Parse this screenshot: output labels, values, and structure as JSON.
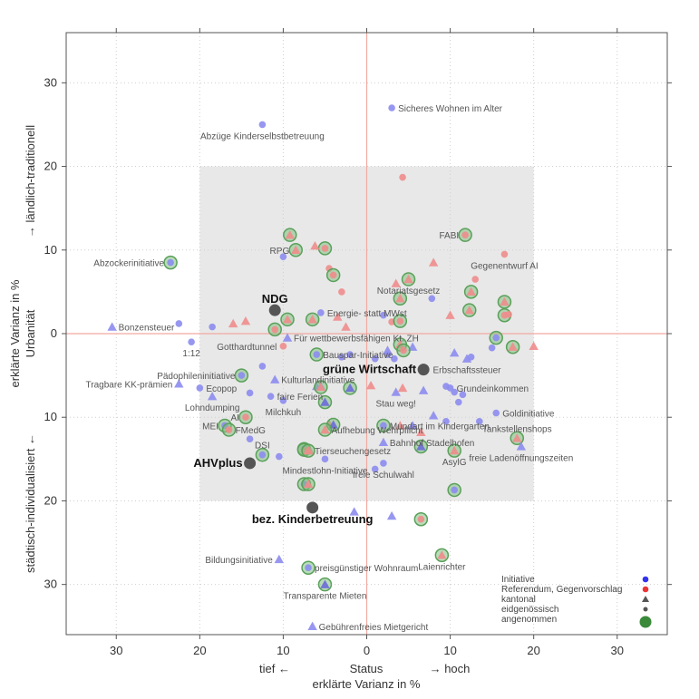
{
  "chart_data": {
    "type": "scatter",
    "xlim": [
      36,
      -36
    ],
    "ylim": [
      36,
      -36
    ],
    "x_ticks": [
      30,
      20,
      10,
      0,
      10,
      20,
      30
    ],
    "y_ticks": [
      30,
      20,
      10,
      0,
      10,
      20,
      30
    ],
    "x_tick_values": [
      30,
      20,
      10,
      0,
      -10,
      -20,
      -30
    ],
    "y_tick_values": [
      30,
      20,
      10,
      0,
      -10,
      -20,
      -30
    ],
    "grid": true,
    "highlight_region": {
      "x": [
        20,
        -20
      ],
      "y": [
        20,
        -20
      ]
    },
    "xlabel_left": "tief ←",
    "xlabel_mid": "Status",
    "xlabel_right": "→ hoch",
    "xlabel": "erklärte Varianz in %",
    "ylabel_left": "erklärte Varianz in %",
    "ylabel_upper": "→ ländlich-traditionell",
    "ylabel_mid": "Urbanität",
    "ylabel_lower": "städtisch-individualisiert ←",
    "colors": {
      "initiative": "#8c8cf0",
      "referendum": "#f08c8c",
      "kantonal_fill": "#6b6bd8",
      "accepted_ring": "#5aa05a",
      "bold_point": "#555555"
    },
    "legend": {
      "position": "bottom-right",
      "items": [
        "Initiative",
        "Referendum, Gegenvorschlag",
        "kantonal",
        "eidgenössisch",
        "angenommen"
      ],
      "colors": [
        "#3333ee",
        "#ee3333",
        "#555555",
        "#555555",
        "#3a8a3a"
      ]
    },
    "labeled_points": [
      {
        "label": "Sicheres Wohnen im Alter",
        "x": -3,
        "y": 27,
        "type": "initiative",
        "shape": "circle",
        "anchor": "right"
      },
      {
        "label": "Abzüge Kinderselbstbetreuung",
        "x": 12.5,
        "y": 25,
        "type": "initiative",
        "shape": "circle",
        "anchor": "below"
      },
      {
        "label": "FABI",
        "x": -11.8,
        "y": 11.8,
        "type": "referendum",
        "shape": "circle",
        "accepted": true,
        "anchor": "left"
      },
      {
        "label": "RPG",
        "x": 8.5,
        "y": 10,
        "type": "referendum",
        "shape": "triangle",
        "accepted": true,
        "anchor": "left"
      },
      {
        "label": "Gegenentwurf AI",
        "x": -16.5,
        "y": 9.5,
        "type": "referendum",
        "shape": "circle",
        "anchor": "below"
      },
      {
        "label": "Abzockerinitiative",
        "x": 23.5,
        "y": 8.5,
        "type": "initiative",
        "shape": "circle",
        "accepted": true,
        "anchor": "left"
      },
      {
        "label": "Notariatsgesetz",
        "x": -5,
        "y": 6.5,
        "type": "referendum",
        "shape": "triangle",
        "accepted": true,
        "anchor": "below"
      },
      {
        "label": "Energie- statt MWst",
        "x": 5.5,
        "y": 2.5,
        "type": "initiative",
        "shape": "circle",
        "anchor": "right"
      },
      {
        "label": "Bonzensteuer",
        "x": 30.5,
        "y": 0.8,
        "type": "initiative",
        "shape": "triangle",
        "anchor": "right"
      },
      {
        "label": "1:12",
        "x": 21,
        "y": -1,
        "type": "initiative",
        "shape": "circle",
        "anchor": "below"
      },
      {
        "label": "Gotthardtunnel",
        "x": 10,
        "y": -1.5,
        "type": "referendum",
        "shape": "circle",
        "anchor": "left"
      },
      {
        "label": "Für wettbewerbsfähigen Kt. ZH",
        "x": 9.5,
        "y": -0.5,
        "type": "initiative",
        "shape": "triangle",
        "anchor": "right"
      },
      {
        "label": "Bauspar-Initiative",
        "x": 6,
        "y": -2.5,
        "type": "initiative",
        "shape": "circle",
        "accepted": true,
        "anchor": "right"
      },
      {
        "label": "Erbschaftssteuer",
        "x": -12,
        "y": -3,
        "type": "initiative",
        "shape": "triangle",
        "anchor": "below"
      },
      {
        "label": "Pädophileninitiative",
        "x": 15,
        "y": -5,
        "type": "initiative",
        "shape": "circle",
        "accepted": true,
        "anchor": "left"
      },
      {
        "label": "Kulturlandinitiative",
        "x": 11,
        "y": -5.5,
        "type": "initiative",
        "shape": "triangle",
        "anchor": "right"
      },
      {
        "label": "Tragbare KK-prämien",
        "x": 22.5,
        "y": -6,
        "type": "initiative",
        "shape": "triangle",
        "anchor": "left"
      },
      {
        "label": "Ecopop",
        "x": 20,
        "y": -6.5,
        "type": "initiative",
        "shape": "circle",
        "anchor": "right"
      },
      {
        "label": "faire Ferien",
        "x": 11.5,
        "y": -7.5,
        "type": "initiative",
        "shape": "circle",
        "anchor": "right"
      },
      {
        "label": "Grundeinkommen",
        "x": -10,
        "y": -6.5,
        "type": "initiative",
        "shape": "circle",
        "anchor": "right"
      },
      {
        "label": "Lohndumping",
        "x": 18.5,
        "y": -7.5,
        "type": "initiative",
        "shape": "triangle",
        "anchor": "below"
      },
      {
        "label": "Milchkuh",
        "x": 10,
        "y": -8,
        "type": "initiative",
        "shape": "circle",
        "anchor": "below"
      },
      {
        "label": "Goldinitiative",
        "x": -15.5,
        "y": -9.5,
        "type": "initiative",
        "shape": "circle",
        "anchor": "right"
      },
      {
        "label": "Stau weg!",
        "x": -3.5,
        "y": -7,
        "type": "initiative",
        "shape": "triangle",
        "anchor": "below"
      },
      {
        "label": "AI",
        "x": 14.5,
        "y": -10,
        "type": "referendum",
        "shape": "circle",
        "accepted": true,
        "anchor": "left"
      },
      {
        "label": "MEI",
        "x": 17,
        "y": -11,
        "type": "initiative",
        "shape": "circle",
        "accepted": true,
        "anchor": "left"
      },
      {
        "label": "FMedG",
        "x": 16.5,
        "y": -11.5,
        "type": "referendum",
        "shape": "circle",
        "accepted": true,
        "anchor": "right"
      },
      {
        "label": "Aufhebung Wehrpflicht",
        "x": 5,
        "y": -11.5,
        "type": "referendum",
        "shape": "triangle",
        "accepted": true,
        "anchor": "right"
      },
      {
        "label": "Mundart im Kindergarten",
        "x": -2,
        "y": -11,
        "type": "initiative",
        "shape": "circle",
        "accepted": true,
        "anchor": "right"
      },
      {
        "label": "Tankstellenshops",
        "x": -18,
        "y": -12.5,
        "type": "referendum",
        "shape": "triangle",
        "accepted": true,
        "anchor": "above"
      },
      {
        "label": "Bahnhof Stadelhofen",
        "x": -2,
        "y": -13,
        "type": "initiative",
        "shape": "triangle",
        "anchor": "right"
      },
      {
        "label": "DSI",
        "x": 12.5,
        "y": -14.5,
        "type": "initiative",
        "shape": "circle",
        "accepted": true,
        "anchor": "above"
      },
      {
        "label": "Tierseuchengesetz",
        "x": 7,
        "y": -14,
        "type": "referendum",
        "shape": "triangle",
        "accepted": true,
        "anchor": "right"
      },
      {
        "label": "freie Ladenöffnungszeiten",
        "x": -18.5,
        "y": -13.5,
        "type": "initiative",
        "shape": "triangle",
        "anchor": "below"
      },
      {
        "label": "AsylG",
        "x": -10.5,
        "y": -14,
        "type": "referendum",
        "shape": "triangle",
        "accepted": true,
        "anchor": "below"
      },
      {
        "label": "Mindestlohn-Initiative",
        "x": 5,
        "y": -15,
        "type": "initiative",
        "shape": "circle",
        "anchor": "below"
      },
      {
        "label": "freie Schulwahl",
        "x": -2,
        "y": -15.5,
        "type": "initiative",
        "shape": "circle",
        "anchor": "below"
      },
      {
        "label": "Bildungsinitiative",
        "x": 10.5,
        "y": -27,
        "type": "initiative",
        "shape": "triangle",
        "anchor": "left"
      },
      {
        "label": "preisgünstiger Wohnraum",
        "x": 7,
        "y": -28,
        "type": "initiative",
        "shape": "circle",
        "accepted": true,
        "anchor": "right"
      },
      {
        "label": "Laienrichter",
        "x": -9,
        "y": -26.5,
        "type": "referendum",
        "shape": "triangle",
        "accepted": true,
        "anchor": "below"
      },
      {
        "label": "Transparente Mieten",
        "x": 5,
        "y": -30,
        "type": "initiative",
        "shape": "triangle",
        "accepted": true,
        "anchor": "below"
      },
      {
        "label": "Gebührenfreies Mietgericht",
        "x": 6.5,
        "y": -35,
        "type": "initiative",
        "shape": "triangle",
        "anchor": "right"
      }
    ],
    "highlighted_points": [
      {
        "label": "NDG",
        "x": 11,
        "y": 2.8,
        "anchor": "above"
      },
      {
        "label": "grüne Wirtschaft",
        "x": -6.8,
        "y": -4.3,
        "anchor": "left"
      },
      {
        "label": "AHVplus",
        "x": 14,
        "y": -15.5,
        "anchor": "left"
      },
      {
        "label": "bez. Kinderbetreuung",
        "x": 6.5,
        "y": -20.8,
        "anchor": "below"
      }
    ],
    "other_points": [
      {
        "x": -4.3,
        "y": 18.7,
        "type": "referendum",
        "shape": "circle"
      },
      {
        "x": 9.2,
        "y": 11.8,
        "type": "referendum",
        "shape": "triangle",
        "accepted": true
      },
      {
        "x": 5,
        "y": 10.2,
        "type": "referendum",
        "shape": "circle",
        "accepted": true
      },
      {
        "x": 6.2,
        "y": 10.5,
        "type": "referendum",
        "shape": "triangle"
      },
      {
        "x": 10,
        "y": 9.2,
        "type": "initiative",
        "shape": "circle"
      },
      {
        "x": 4.5,
        "y": 7.8,
        "type": "referendum",
        "shape": "circle"
      },
      {
        "x": 4,
        "y": 7,
        "type": "referendum",
        "shape": "circle",
        "accepted": true
      },
      {
        "x": -8,
        "y": 8.5,
        "type": "referendum",
        "shape": "triangle"
      },
      {
        "x": -13,
        "y": 6.5,
        "type": "referendum",
        "shape": "circle"
      },
      {
        "x": -3.5,
        "y": 6,
        "type": "referendum",
        "shape": "triangle"
      },
      {
        "x": -12.5,
        "y": 5,
        "type": "referendum",
        "shape": "triangle",
        "accepted": true
      },
      {
        "x": -7.8,
        "y": 4.2,
        "type": "initiative",
        "shape": "circle"
      },
      {
        "x": -4,
        "y": 4.2,
        "type": "referendum",
        "shape": "triangle",
        "accepted": true
      },
      {
        "x": -16.5,
        "y": 3.8,
        "type": "referendum",
        "shape": "triangle",
        "accepted": true
      },
      {
        "x": 3,
        "y": 5,
        "type": "referendum",
        "shape": "circle"
      },
      {
        "x": -12.3,
        "y": 2.8,
        "type": "referendum",
        "shape": "triangle",
        "accepted": true
      },
      {
        "x": -16.5,
        "y": 2.2,
        "type": "referendum",
        "shape": "circle",
        "accepted": true
      },
      {
        "x": -17,
        "y": 2.3,
        "type": "referendum",
        "shape": "circle"
      },
      {
        "x": 9.5,
        "y": 1.7,
        "type": "referendum",
        "shape": "triangle",
        "accepted": true
      },
      {
        "x": 6.5,
        "y": 1.7,
        "type": "referendum",
        "shape": "triangle",
        "accepted": true
      },
      {
        "x": 3.5,
        "y": 2,
        "type": "referendum",
        "shape": "triangle"
      },
      {
        "x": -2,
        "y": 2.2,
        "type": "initiative",
        "shape": "circle"
      },
      {
        "x": -3,
        "y": 1.4,
        "type": "referendum",
        "shape": "circle"
      },
      {
        "x": -4,
        "y": 1.5,
        "type": "referendum",
        "shape": "circle",
        "accepted": true
      },
      {
        "x": -10,
        "y": 2.2,
        "type": "referendum",
        "shape": "triangle"
      },
      {
        "x": 2.5,
        "y": 0.8,
        "type": "referendum",
        "shape": "triangle"
      },
      {
        "x": 11,
        "y": 0.5,
        "type": "referendum",
        "shape": "circle",
        "accepted": true
      },
      {
        "x": 14.5,
        "y": 1.5,
        "type": "referendum",
        "shape": "triangle"
      },
      {
        "x": 16,
        "y": 1.2,
        "type": "referendum",
        "shape": "triangle"
      },
      {
        "x": 18.5,
        "y": 0.8,
        "type": "initiative",
        "shape": "circle"
      },
      {
        "x": 22.5,
        "y": 1.2,
        "type": "initiative",
        "shape": "circle"
      },
      {
        "x": -15.5,
        "y": -0.5,
        "type": "initiative",
        "shape": "circle",
        "accepted": true
      },
      {
        "x": -20,
        "y": -1.5,
        "type": "referendum",
        "shape": "triangle"
      },
      {
        "x": -17.5,
        "y": -1.6,
        "type": "referendum",
        "shape": "triangle",
        "accepted": true
      },
      {
        "x": -15,
        "y": -1.7,
        "type": "initiative",
        "shape": "circle"
      },
      {
        "x": -4,
        "y": -1.3,
        "type": "referendum",
        "shape": "triangle",
        "accepted": true
      },
      {
        "x": -2.5,
        "y": -2,
        "type": "initiative",
        "shape": "triangle"
      },
      {
        "x": -5.5,
        "y": -1.6,
        "type": "initiative",
        "shape": "triangle"
      },
      {
        "x": -10.5,
        "y": -2.3,
        "type": "initiative",
        "shape": "triangle"
      },
      {
        "x": -12.5,
        "y": -2.8,
        "type": "initiative",
        "shape": "circle"
      },
      {
        "x": -4.4,
        "y": -2,
        "type": "referendum",
        "shape": "circle",
        "accepted": true
      },
      {
        "x": 2,
        "y": -2.5,
        "type": "initiative",
        "shape": "circle"
      },
      {
        "x": -1,
        "y": -3,
        "type": "initiative",
        "shape": "circle"
      },
      {
        "x": -2.5,
        "y": -2.5,
        "type": "initiative",
        "shape": "circle"
      },
      {
        "x": -3.3,
        "y": -3,
        "type": "initiative",
        "shape": "circle"
      },
      {
        "x": 3,
        "y": -2.8,
        "type": "initiative",
        "shape": "circle"
      },
      {
        "x": 12.5,
        "y": -3.9,
        "type": "initiative",
        "shape": "circle"
      },
      {
        "x": 2,
        "y": -6.5,
        "type": "initiative",
        "shape": "triangle",
        "accepted": true
      },
      {
        "x": 6,
        "y": -6.3,
        "type": "initiative",
        "shape": "triangle"
      },
      {
        "x": 5.5,
        "y": -6.3,
        "type": "initiative",
        "shape": "triangle"
      },
      {
        "x": 5,
        "y": -8.2,
        "type": "initiative",
        "shape": "triangle",
        "accepted": true
      },
      {
        "x": 5.5,
        "y": -6.4,
        "type": "referendum",
        "shape": "triangle",
        "accepted": true
      },
      {
        "x": -0.5,
        "y": -6.2,
        "type": "referendum",
        "shape": "triangle"
      },
      {
        "x": -4.3,
        "y": -6.5,
        "type": "referendum",
        "shape": "triangle"
      },
      {
        "x": -6.8,
        "y": -6.8,
        "type": "initiative",
        "shape": "triangle"
      },
      {
        "x": -9.5,
        "y": -6.3,
        "type": "initiative",
        "shape": "circle"
      },
      {
        "x": -10.5,
        "y": -7,
        "type": "initiative",
        "shape": "circle"
      },
      {
        "x": -11.5,
        "y": -7.3,
        "type": "initiative",
        "shape": "circle"
      },
      {
        "x": -11,
        "y": -8.2,
        "type": "initiative",
        "shape": "circle"
      },
      {
        "x": 14,
        "y": -7.1,
        "type": "initiative",
        "shape": "circle"
      },
      {
        "x": -8,
        "y": -9.8,
        "type": "initiative",
        "shape": "triangle"
      },
      {
        "x": 4.5,
        "y": -10.8,
        "type": "referendum",
        "shape": "triangle"
      },
      {
        "x": 4,
        "y": -10.9,
        "type": "initiative",
        "shape": "triangle",
        "accepted": true
      },
      {
        "x": 14,
        "y": -12.6,
        "type": "initiative",
        "shape": "circle"
      },
      {
        "x": -5.5,
        "y": -11,
        "type": "initiative",
        "shape": "triangle"
      },
      {
        "x": -4,
        "y": -11,
        "type": "referendum",
        "shape": "triangle"
      },
      {
        "x": -6.5,
        "y": -11.8,
        "type": "referendum",
        "shape": "triangle"
      },
      {
        "x": -9.5,
        "y": -10.5,
        "type": "initiative",
        "shape": "circle"
      },
      {
        "x": -13.5,
        "y": -10.5,
        "type": "initiative",
        "shape": "circle"
      },
      {
        "x": 7.5,
        "y": -13.8,
        "type": "initiative",
        "shape": "circle",
        "accepted": true
      },
      {
        "x": 7.5,
        "y": -13.9,
        "type": "referendum",
        "shape": "circle",
        "accepted": true
      },
      {
        "x": -6.5,
        "y": -13.5,
        "type": "initiative",
        "shape": "triangle",
        "accepted": true
      },
      {
        "x": 6.8,
        "y": -14,
        "type": "referendum",
        "shape": "triangle"
      },
      {
        "x": 10.5,
        "y": -14.7,
        "type": "initiative",
        "shape": "circle"
      },
      {
        "x": 7.5,
        "y": -18,
        "type": "initiative",
        "shape": "circle",
        "accepted": true
      },
      {
        "x": 7,
        "y": -18,
        "type": "referendum",
        "shape": "triangle",
        "accepted": true
      },
      {
        "x": -1,
        "y": -16.2,
        "type": "initiative",
        "shape": "circle"
      },
      {
        "x": -10.5,
        "y": -18.7,
        "type": "initiative",
        "shape": "circle",
        "accepted": true
      },
      {
        "x": 1.5,
        "y": -21.3,
        "type": "initiative",
        "shape": "triangle"
      },
      {
        "x": -3,
        "y": -21.8,
        "type": "initiative",
        "shape": "triangle"
      },
      {
        "x": -6.5,
        "y": -22.2,
        "type": "referendum",
        "shape": "circle",
        "accepted": true
      }
    ]
  }
}
